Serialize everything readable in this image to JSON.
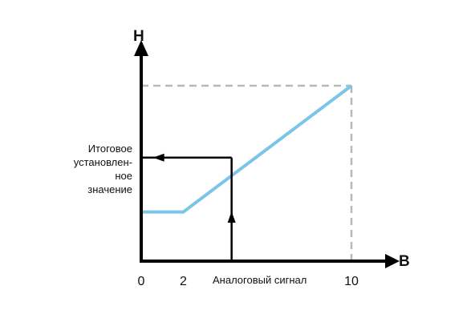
{
  "chart_data": {
    "type": "line",
    "x_axis_label": "В",
    "y_axis_label": "Н",
    "x_ticks": [
      "0",
      "2",
      "10"
    ],
    "x_annotation": "Аналоговый сигнал",
    "y_annotation_lines": [
      "Итоговое",
      "установлен-",
      "ное",
      "значение"
    ],
    "xlim": [
      0,
      10
    ],
    "series": [
      {
        "x": [
          0,
          2,
          10
        ],
        "y": [
          0.28,
          0.28,
          1.0
        ],
        "color": "#7cc4e8"
      }
    ],
    "guide": {
      "x": 4.3,
      "y": 0.59,
      "color": "#000000"
    },
    "max_marker": {
      "x": 10,
      "y": 1.0,
      "color": "#b8b8b8"
    },
    "axis_color": "#000000"
  }
}
